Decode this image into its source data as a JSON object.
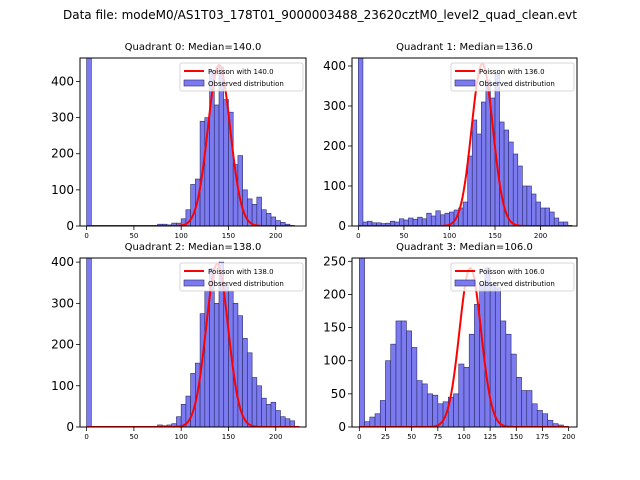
{
  "suptitle": "Data file: modeM0/AS1T03_178T01_9000003488_23620cztM0_level2_quad_clean.evt",
  "colors": {
    "bar_fill": "#7b7bef",
    "bar_edge": "#2a2a6a",
    "poisson_line": "#ff0000"
  },
  "chart_data": [
    {
      "type": "bar",
      "title": "Quadrant 0: Median=140.0",
      "median": 140.0,
      "bin_width": 5,
      "xlim": [
        -7,
        232
      ],
      "ylim": [
        0,
        465
      ],
      "xticks": [
        0,
        50,
        100,
        150,
        200
      ],
      "yticks": [
        0,
        100,
        200,
        300,
        400
      ],
      "legend": [
        "Poisson with 140.0",
        "Observed distribution"
      ],
      "legend_position": "top-right",
      "bin_starts": [
        0,
        75,
        80,
        85,
        90,
        95,
        100,
        105,
        110,
        115,
        120,
        125,
        130,
        135,
        140,
        145,
        150,
        155,
        160,
        165,
        170,
        175,
        180,
        185,
        190,
        195,
        200,
        205,
        210
      ],
      "values": [
        465,
        5,
        5,
        3,
        8,
        8,
        20,
        45,
        115,
        130,
        290,
        300,
        430,
        335,
        440,
        350,
        315,
        170,
        195,
        100,
        75,
        60,
        80,
        45,
        35,
        25,
        15,
        10,
        5
      ],
      "poisson_peak": 445
    },
    {
      "type": "bar",
      "title": "Quadrant 1: Median=136.0",
      "median": 136.0,
      "bin_width": 5,
      "xlim": [
        -7,
        240
      ],
      "ylim": [
        0,
        420
      ],
      "xticks": [
        0,
        50,
        100,
        150,
        200
      ],
      "yticks": [
        0,
        100,
        200,
        300,
        400
      ],
      "legend": [
        "Poisson with 136.0",
        "Observed distribution"
      ],
      "legend_position": "top-right",
      "bin_starts": [
        0,
        5,
        10,
        15,
        20,
        25,
        30,
        35,
        40,
        45,
        50,
        55,
        60,
        65,
        70,
        75,
        80,
        85,
        90,
        95,
        100,
        105,
        110,
        115,
        120,
        125,
        130,
        135,
        140,
        145,
        150,
        155,
        160,
        165,
        170,
        175,
        180,
        185,
        190,
        195,
        200,
        205,
        210,
        215,
        220,
        225
      ],
      "values": [
        420,
        10,
        12,
        8,
        8,
        6,
        7,
        12,
        10,
        18,
        15,
        20,
        17,
        22,
        18,
        32,
        25,
        38,
        28,
        32,
        35,
        40,
        45,
        60,
        175,
        265,
        230,
        310,
        365,
        320,
        380,
        260,
        240,
        210,
        180,
        150,
        100,
        100,
        80,
        60,
        45,
        45,
        35,
        20,
        10,
        10
      ],
      "poisson_peak": 405
    },
    {
      "type": "bar",
      "title": "Quadrant 2: Median=138.0",
      "median": 138.0,
      "bin_width": 5,
      "xlim": [
        -7,
        232
      ],
      "ylim": [
        0,
        410
      ],
      "xticks": [
        0,
        50,
        100,
        150,
        200
      ],
      "yticks": [
        0,
        100,
        200,
        300,
        400
      ],
      "legend": [
        "Poisson with 138.0",
        "Observed distribution"
      ],
      "legend_position": "top-right",
      "bin_starts": [
        0,
        75,
        80,
        85,
        90,
        95,
        100,
        105,
        110,
        115,
        120,
        125,
        130,
        135,
        140,
        145,
        150,
        155,
        160,
        165,
        170,
        175,
        180,
        185,
        190,
        195,
        200,
        205,
        210,
        215
      ],
      "values": [
        410,
        5,
        3,
        5,
        8,
        25,
        55,
        75,
        130,
        155,
        275,
        330,
        385,
        300,
        400,
        345,
        330,
        300,
        270,
        215,
        180,
        120,
        100,
        70,
        55,
        60,
        40,
        25,
        20,
        15
      ],
      "poisson_peak": 395
    },
    {
      "type": "bar",
      "title": "Quadrant 3: Median=106.0",
      "median": 106.0,
      "bin_width": 5,
      "xlim": [
        -7,
        208
      ],
      "ylim": [
        0,
        255
      ],
      "xticks": [
        0,
        25,
        50,
        75,
        100,
        125,
        150,
        175,
        200
      ],
      "yticks": [
        0,
        50,
        100,
        150,
        200,
        250
      ],
      "legend": [
        "Poisson with 106.0",
        "Observed distribution"
      ],
      "legend_position": "top-right",
      "bin_starts": [
        0,
        5,
        10,
        15,
        20,
        25,
        30,
        35,
        40,
        45,
        50,
        55,
        60,
        65,
        70,
        75,
        80,
        85,
        90,
        95,
        100,
        105,
        110,
        115,
        120,
        125,
        130,
        135,
        140,
        145,
        150,
        155,
        160,
        165,
        170,
        175,
        180,
        185,
        190
      ],
      "values": [
        255,
        8,
        15,
        20,
        40,
        100,
        125,
        160,
        160,
        145,
        120,
        70,
        65,
        50,
        48,
        35,
        38,
        45,
        50,
        95,
        90,
        140,
        185,
        215,
        240,
        215,
        210,
        160,
        140,
        110,
        75,
        55,
        55,
        35,
        25,
        20,
        10,
        5,
        3
      ],
      "poisson_peak": 240
    }
  ]
}
